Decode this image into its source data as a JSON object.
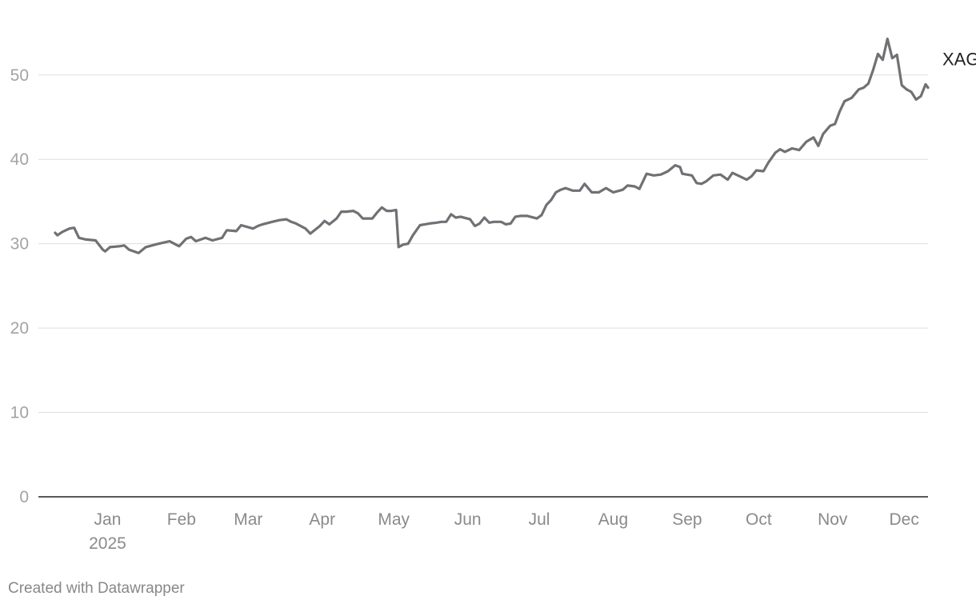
{
  "chart_data": {
    "type": "line",
    "title": "",
    "xlabel": "",
    "ylabel": "",
    "ylim": [
      0,
      57
    ],
    "y_ticks": [
      0,
      10,
      20,
      30,
      40,
      50
    ],
    "grid": true,
    "x_tick_labels": [
      {
        "label": "Jan",
        "sub": "2025",
        "date": "2025-01-01"
      },
      {
        "label": "Feb",
        "sub": "",
        "date": "2025-02-01"
      },
      {
        "label": "Mar",
        "sub": "",
        "date": "2025-03-01"
      },
      {
        "label": "Apr",
        "sub": "",
        "date": "2025-04-01"
      },
      {
        "label": "May",
        "sub": "",
        "date": "2025-05-01"
      },
      {
        "label": "Jun",
        "sub": "",
        "date": "2025-06-01"
      },
      {
        "label": "Jul",
        "sub": "",
        "date": "2025-07-01"
      },
      {
        "label": "Aug",
        "sub": "",
        "date": "2025-08-01"
      },
      {
        "label": "Sep",
        "sub": "",
        "date": "2025-09-01"
      },
      {
        "label": "Oct",
        "sub": "",
        "date": "2025-10-01"
      },
      {
        "label": "Nov",
        "sub": "",
        "date": "2025-11-01"
      },
      {
        "label": "Dec",
        "sub": "",
        "date": "2025-12-01"
      }
    ],
    "x_range": [
      "2024-12-03",
      "2025-12-11"
    ],
    "series": [
      {
        "name": "XAG",
        "color": "#707174",
        "points": [
          [
            "2024-12-10",
            31.3
          ],
          [
            "2024-12-11",
            31.0
          ],
          [
            "2024-12-13",
            31.4
          ],
          [
            "2024-12-16",
            31.8
          ],
          [
            "2024-12-18",
            31.9
          ],
          [
            "2024-12-20",
            30.7
          ],
          [
            "2024-12-23",
            30.5
          ],
          [
            "2024-12-27",
            30.4
          ],
          [
            "2024-12-30",
            29.3
          ],
          [
            "2024-12-31",
            29.1
          ],
          [
            "2025-01-02",
            29.6
          ],
          [
            "2025-01-06",
            29.7
          ],
          [
            "2025-01-08",
            29.8
          ],
          [
            "2025-01-10",
            29.3
          ],
          [
            "2025-01-14",
            28.9
          ],
          [
            "2025-01-17",
            29.6
          ],
          [
            "2025-01-21",
            29.9
          ],
          [
            "2025-01-24",
            30.1
          ],
          [
            "2025-01-27",
            30.3
          ],
          [
            "2025-01-29",
            30.0
          ],
          [
            "2025-01-31",
            29.7
          ],
          [
            "2025-02-03",
            30.6
          ],
          [
            "2025-02-05",
            30.8
          ],
          [
            "2025-02-07",
            30.3
          ],
          [
            "2025-02-11",
            30.7
          ],
          [
            "2025-02-14",
            30.4
          ],
          [
            "2025-02-18",
            30.7
          ],
          [
            "2025-02-20",
            31.6
          ],
          [
            "2025-02-24",
            31.5
          ],
          [
            "2025-02-26",
            32.2
          ],
          [
            "2025-03-03",
            31.8
          ],
          [
            "2025-03-05",
            32.1
          ],
          [
            "2025-03-07",
            32.3
          ],
          [
            "2025-03-11",
            32.6
          ],
          [
            "2025-03-14",
            32.8
          ],
          [
            "2025-03-17",
            32.9
          ],
          [
            "2025-03-19",
            32.6
          ],
          [
            "2025-03-21",
            32.4
          ],
          [
            "2025-03-25",
            31.8
          ],
          [
            "2025-03-27",
            31.2
          ],
          [
            "2025-03-31",
            32.1
          ],
          [
            "2025-04-02",
            32.7
          ],
          [
            "2025-04-04",
            32.3
          ],
          [
            "2025-04-07",
            33.0
          ],
          [
            "2025-04-09",
            33.8
          ],
          [
            "2025-04-11",
            33.8
          ],
          [
            "2025-04-14",
            33.9
          ],
          [
            "2025-04-16",
            33.6
          ],
          [
            "2025-04-18",
            33.0
          ],
          [
            "2025-04-22",
            33.0
          ],
          [
            "2025-04-24",
            33.7
          ],
          [
            "2025-04-26",
            34.3
          ],
          [
            "2025-04-28",
            33.9
          ],
          [
            "2025-04-30",
            33.9
          ],
          [
            "2025-05-02",
            34.0
          ],
          [
            "2025-05-03",
            29.6
          ],
          [
            "2025-05-05",
            29.9
          ],
          [
            "2025-05-07",
            30.0
          ],
          [
            "2025-05-09",
            31.0
          ],
          [
            "2025-05-12",
            32.2
          ],
          [
            "2025-05-14",
            32.3
          ],
          [
            "2025-05-16",
            32.4
          ],
          [
            "2025-05-19",
            32.5
          ],
          [
            "2025-05-21",
            32.6
          ],
          [
            "2025-05-23",
            32.6
          ],
          [
            "2025-05-25",
            33.5
          ],
          [
            "2025-05-27",
            33.1
          ],
          [
            "2025-05-29",
            33.2
          ],
          [
            "2025-06-02",
            32.9
          ],
          [
            "2025-06-04",
            32.1
          ],
          [
            "2025-06-06",
            32.4
          ],
          [
            "2025-06-08",
            33.1
          ],
          [
            "2025-06-10",
            32.5
          ],
          [
            "2025-06-12",
            32.6
          ],
          [
            "2025-06-15",
            32.6
          ],
          [
            "2025-06-17",
            32.3
          ],
          [
            "2025-06-19",
            32.4
          ],
          [
            "2025-06-21",
            33.2
          ],
          [
            "2025-06-23",
            33.3
          ],
          [
            "2025-06-26",
            33.3
          ],
          [
            "2025-06-30",
            33.0
          ],
          [
            "2025-07-02",
            33.4
          ],
          [
            "2025-07-04",
            34.6
          ],
          [
            "2025-07-06",
            35.2
          ],
          [
            "2025-07-08",
            36.1
          ],
          [
            "2025-07-10",
            36.4
          ],
          [
            "2025-07-12",
            36.6
          ],
          [
            "2025-07-15",
            36.3
          ],
          [
            "2025-07-18",
            36.3
          ],
          [
            "2025-07-20",
            37.1
          ],
          [
            "2025-07-23",
            36.1
          ],
          [
            "2025-07-26",
            36.1
          ],
          [
            "2025-07-29",
            36.6
          ],
          [
            "2025-08-01",
            36.1
          ],
          [
            "2025-08-05",
            36.4
          ],
          [
            "2025-08-07",
            36.9
          ],
          [
            "2025-08-10",
            36.8
          ],
          [
            "2025-08-12",
            36.5
          ],
          [
            "2025-08-15",
            38.3
          ],
          [
            "2025-08-18",
            38.1
          ],
          [
            "2025-08-21",
            38.2
          ],
          [
            "2025-08-24",
            38.6
          ],
          [
            "2025-08-27",
            39.3
          ],
          [
            "2025-08-29",
            39.1
          ],
          [
            "2025-08-30",
            38.3
          ],
          [
            "2025-09-03",
            38.1
          ],
          [
            "2025-09-05",
            37.2
          ],
          [
            "2025-09-07",
            37.1
          ],
          [
            "2025-09-09",
            37.4
          ],
          [
            "2025-09-12",
            38.1
          ],
          [
            "2025-09-15",
            38.2
          ],
          [
            "2025-09-18",
            37.6
          ],
          [
            "2025-09-20",
            38.4
          ],
          [
            "2025-09-23",
            38.0
          ],
          [
            "2025-09-26",
            37.6
          ],
          [
            "2025-09-28",
            38.0
          ],
          [
            "2025-09-30",
            38.7
          ],
          [
            "2025-10-03",
            38.6
          ],
          [
            "2025-10-05",
            39.6
          ],
          [
            "2025-10-08",
            40.8
          ],
          [
            "2025-10-10",
            41.2
          ],
          [
            "2025-10-12",
            40.9
          ],
          [
            "2025-10-15",
            41.3
          ],
          [
            "2025-10-18",
            41.1
          ],
          [
            "2025-10-21",
            42.1
          ],
          [
            "2025-10-24",
            42.6
          ],
          [
            "2025-10-26",
            41.6
          ],
          [
            "2025-10-28",
            43.0
          ],
          [
            "2025-10-31",
            44.0
          ],
          [
            "2025-11-02",
            44.2
          ],
          [
            "2025-11-04",
            45.7
          ],
          [
            "2025-11-06",
            46.9
          ],
          [
            "2025-11-09",
            47.3
          ],
          [
            "2025-11-12",
            48.3
          ],
          [
            "2025-11-14",
            48.5
          ],
          [
            "2025-11-16",
            49.0
          ],
          [
            "2025-11-18",
            50.6
          ],
          [
            "2025-11-20",
            52.5
          ],
          [
            "2025-11-22",
            51.8
          ],
          [
            "2025-11-24",
            54.3
          ],
          [
            "2025-11-26",
            52.0
          ],
          [
            "2025-11-28",
            52.4
          ],
          [
            "2025-11-30",
            48.8
          ],
          [
            "2025-12-02",
            48.3
          ],
          [
            "2025-12-04",
            48.0
          ],
          [
            "2025-12-06",
            47.1
          ],
          [
            "2025-12-08",
            47.5
          ],
          [
            "2025-12-10",
            48.9
          ],
          [
            "2025-12-11",
            48.5
          ]
        ]
      }
    ]
  },
  "footer": {
    "credit": "Created with Datawrapper"
  }
}
